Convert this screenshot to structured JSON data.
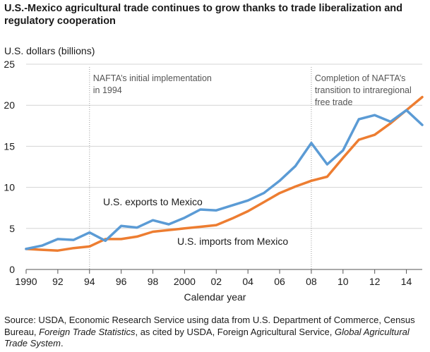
{
  "chart_data": {
    "type": "line",
    "title_line1": "U.S.-Mexico agricultural trade continues to grow thanks to trade liberalization and",
    "title_line2": "regulatory cooperation",
    "ylabel": "U.S. dollars (billions)",
    "xlabel": "Calendar year",
    "ylim": [
      0,
      25
    ],
    "xlim": [
      1990,
      2015
    ],
    "y_ticks": [
      0,
      5,
      10,
      15,
      20,
      25
    ],
    "x_ticks": [
      {
        "value": 1990,
        "label": "1990"
      },
      {
        "value": 1992,
        "label": "92"
      },
      {
        "value": 1994,
        "label": "94"
      },
      {
        "value": 1996,
        "label": "96"
      },
      {
        "value": 1998,
        "label": "98"
      },
      {
        "value": 2000,
        "label": "2000"
      },
      {
        "value": 2002,
        "label": "02"
      },
      {
        "value": 2004,
        "label": "04"
      },
      {
        "value": 2006,
        "label": "06"
      },
      {
        "value": 2008,
        "label": "08"
      },
      {
        "value": 2010,
        "label": "10"
      },
      {
        "value": 2012,
        "label": "12"
      },
      {
        "value": 2014,
        "label": "14"
      }
    ],
    "grid": true,
    "series": [
      {
        "name": "U.S. exports to Mexico",
        "label": "U.S. exports to Mexico",
        "color": "#5b9bd5",
        "x": [
          1990,
          1991,
          1992,
          1993,
          1994,
          1995,
          1996,
          1997,
          1998,
          1999,
          2000,
          2001,
          2002,
          2003,
          2004,
          2005,
          2006,
          2007,
          2008,
          2009,
          2010,
          2011,
          2012,
          2013,
          2014,
          2015
        ],
        "values": [
          2.5,
          2.9,
          3.7,
          3.6,
          4.5,
          3.5,
          5.3,
          5.1,
          6.0,
          5.5,
          6.3,
          7.3,
          7.2,
          7.8,
          8.4,
          9.3,
          10.8,
          12.6,
          15.4,
          12.8,
          14.5,
          18.3,
          18.8,
          18.0,
          19.4,
          17.6
        ]
      },
      {
        "name": "U.S. imports from Mexico",
        "label": "U.S. imports from Mexico",
        "color": "#ed7d31",
        "x": [
          1990,
          1991,
          1992,
          1993,
          1994,
          1995,
          1996,
          1997,
          1998,
          1999,
          2000,
          2001,
          2002,
          2003,
          2004,
          2005,
          2006,
          2007,
          2008,
          2009,
          2010,
          2011,
          2012,
          2013,
          2014,
          2015
        ],
        "values": [
          2.5,
          2.4,
          2.3,
          2.6,
          2.8,
          3.7,
          3.7,
          4.0,
          4.6,
          4.8,
          5.0,
          5.2,
          5.4,
          6.2,
          7.1,
          8.2,
          9.3,
          10.1,
          10.8,
          11.3,
          13.6,
          15.8,
          16.4,
          17.8,
          19.4,
          21.0
        ]
      }
    ],
    "annotations": [
      {
        "x": 1994,
        "line1": "NAFTA’s initial implementation",
        "line2": "in 1994"
      },
      {
        "x": 2008,
        "line1": "Completion of NAFTA’s",
        "line2": "transition to intraregional",
        "line3": "free trade"
      }
    ]
  },
  "source": {
    "prefix": "Source:  USDA, Economic Research Service using data from U.S. Department of Commerce, Census Bureau, ",
    "italic1": "Foreign Trade Statistics",
    "middle": ", as cited by USDA, Foreign Agricultural Service, ",
    "italic2": "Global Agricultural Trade System",
    "suffix": "."
  }
}
